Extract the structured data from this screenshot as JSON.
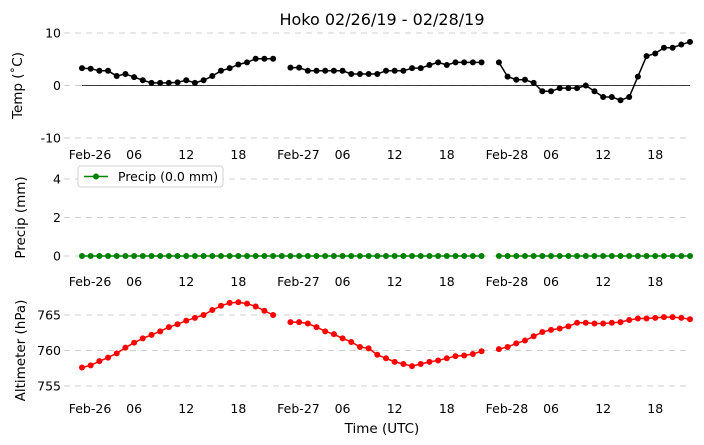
{
  "chart_data": {
    "type": "line",
    "title": "Hoko 02/26/19 - 02/28/19",
    "xlabel": "Time (UTC)",
    "x_tick_labels": [
      "Feb-26",
      "06",
      "12",
      "18",
      "Feb-27",
      "06",
      "12",
      "18",
      "Feb-28",
      "06",
      "12",
      "18"
    ],
    "x_tick_hours": [
      0,
      6,
      12,
      18,
      24,
      30,
      36,
      42,
      48,
      54,
      60,
      66
    ],
    "x_range_hours": [
      0,
      70
    ],
    "grid": "horizontal dashed",
    "panels": [
      {
        "ylabel": "Temp (˚C)",
        "ylim": [
          -10,
          10
        ],
        "yticks": [
          -10,
          0,
          10
        ],
        "zero_line": true,
        "legend": null,
        "series": [
          {
            "color": "#000000",
            "x_hours": [
              0,
              1,
              2,
              3,
              4,
              5,
              6,
              7,
              8,
              9,
              10,
              11,
              12,
              13,
              14,
              15,
              16,
              17,
              18,
              19,
              20,
              21,
              22,
              23,
              24,
              25,
              26,
              27,
              28,
              29,
              30,
              31,
              32,
              33,
              34,
              35,
              36,
              37,
              38,
              39,
              40,
              41,
              42,
              43,
              44,
              45,
              46,
              47,
              48,
              49,
              50,
              51,
              52,
              53,
              54,
              55,
              56,
              57,
              58,
              59,
              60,
              61,
              62,
              63,
              64,
              65,
              66,
              67,
              68,
              69,
              70
            ],
            "values": [
              3.3,
              3.2,
              2.8,
              2.8,
              1.8,
              2.2,
              1.6,
              1.0,
              0.5,
              0.5,
              0.5,
              0.6,
              1.0,
              0.5,
              1.0,
              1.8,
              2.8,
              3.3,
              4.0,
              4.4,
              5.1,
              5.1,
              5.1,
              null,
              3.4,
              3.4,
              2.8,
              2.8,
              2.8,
              2.8,
              2.8,
              2.2,
              2.2,
              2.2,
              2.2,
              2.8,
              2.8,
              2.8,
              3.3,
              3.3,
              3.9,
              4.4,
              3.9,
              4.4,
              4.4,
              4.4,
              4.4,
              null,
              4.4,
              1.7,
              1.1,
              1.1,
              0.5,
              -1.1,
              -1.1,
              -0.5,
              -0.5,
              -0.5,
              0.0,
              -1.1,
              -2.2,
              -2.2,
              -2.8,
              -2.2,
              1.7,
              5.6,
              6.1,
              7.2,
              7.2,
              7.8,
              8.3
            ]
          }
        ]
      },
      {
        "ylabel": "Precip (mm)",
        "ylim": [
          -0.8,
          5.4
        ],
        "yticks": [
          0,
          2,
          4
        ],
        "zero_line": false,
        "legend": "top-left",
        "series": [
          {
            "name": "Precip (0.0 mm)",
            "color": "#008000",
            "x_hours": [
              0,
              1,
              2,
              3,
              4,
              5,
              6,
              7,
              8,
              9,
              10,
              11,
              12,
              13,
              14,
              15,
              16,
              17,
              18,
              19,
              20,
              21,
              22,
              23,
              24,
              25,
              26,
              27,
              28,
              29,
              30,
              31,
              32,
              33,
              34,
              35,
              36,
              37,
              38,
              39,
              40,
              41,
              42,
              43,
              44,
              45,
              46,
              47,
              48,
              49,
              50,
              51,
              52,
              53,
              54,
              55,
              56,
              57,
              58,
              59,
              60,
              61,
              62,
              63,
              64,
              65,
              66,
              67,
              68,
              69,
              70
            ],
            "values": [
              0,
              0,
              0,
              0,
              0,
              0,
              0,
              0,
              0,
              0,
              0,
              0,
              0,
              0,
              0,
              0,
              0,
              0,
              0,
              0,
              0,
              0,
              0,
              0,
              0,
              0,
              0,
              0,
              0,
              0,
              0,
              0,
              0,
              0,
              0,
              0,
              0,
              0,
              0,
              0,
              0,
              0,
              0,
              0,
              0,
              0,
              0,
              null,
              0,
              0,
              0,
              0,
              0,
              0,
              0,
              0,
              0,
              0,
              0,
              0,
              0,
              0,
              0,
              0,
              0,
              0,
              0,
              0,
              0,
              0,
              0
            ]
          }
        ]
      },
      {
        "ylabel": "Altimeter (hPa)",
        "ylim": [
          754,
          768.5
        ],
        "yticks": [
          755,
          760,
          765
        ],
        "zero_line": false,
        "legend": null,
        "series": [
          {
            "color": "#ff0000",
            "x_hours": [
              0,
              1,
              2,
              3,
              4,
              5,
              6,
              7,
              8,
              9,
              10,
              11,
              12,
              13,
              14,
              15,
              16,
              17,
              18,
              19,
              20,
              21,
              22,
              23,
              24,
              25,
              26,
              27,
              28,
              29,
              30,
              31,
              32,
              33,
              34,
              35,
              36,
              37,
              38,
              39,
              40,
              41,
              42,
              43,
              44,
              45,
              46,
              47,
              48,
              49,
              50,
              51,
              52,
              53,
              54,
              55,
              56,
              57,
              58,
              59,
              60,
              61,
              62,
              63,
              64,
              65,
              66,
              67,
              68,
              69,
              70
            ],
            "values": [
              757.6,
              757.9,
              758.5,
              759.0,
              759.6,
              760.4,
              761.1,
              761.7,
              762.2,
              762.7,
              763.3,
              763.7,
              764.2,
              764.6,
              765.0,
              765.7,
              766.3,
              766.7,
              766.8,
              766.6,
              766.2,
              765.6,
              765.0,
              null,
              764.0,
              764.0,
              763.8,
              763.3,
              762.7,
              762.3,
              761.7,
              761.2,
              760.5,
              760.3,
              759.4,
              758.9,
              758.4,
              758.1,
              757.8,
              758.1,
              758.4,
              758.6,
              758.9,
              759.2,
              759.3,
              759.5,
              759.9,
              null,
              760.2,
              760.5,
              761.0,
              761.4,
              762.0,
              762.6,
              762.9,
              763.1,
              763.4,
              763.9,
              763.9,
              763.8,
              763.8,
              763.9,
              764.0,
              764.3,
              764.5,
              764.5,
              764.6,
              764.7,
              764.7,
              764.6,
              764.4
            ]
          }
        ]
      }
    ]
  }
}
